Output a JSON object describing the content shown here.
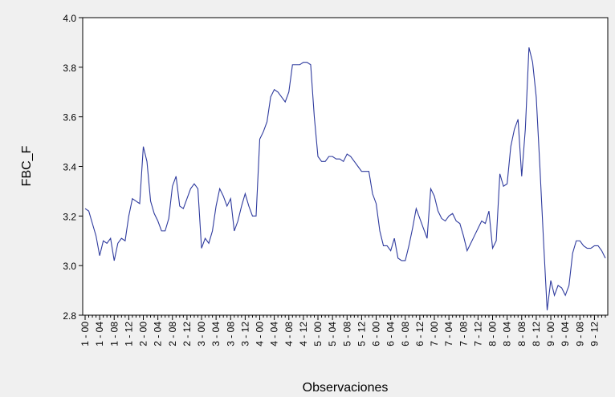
{
  "chart_data": {
    "type": "line",
    "ylabel": "FBC_F",
    "xlabel": "Observaciones",
    "color": "#2f3b9e",
    "ylim": [
      2.8,
      4.0
    ],
    "yticks": [
      2.8,
      {
        "value": 3,
        "label": "3.0"
      },
      3.2,
      3.4,
      3.6,
      3.8,
      {
        "value": 4,
        "label": "4.0"
      }
    ],
    "categories": [
      "1 - 00",
      null,
      null,
      null,
      "1 - 04",
      null,
      null,
      null,
      "1 - 08",
      null,
      null,
      null,
      "1 - 12",
      null,
      null,
      null,
      "2 - 00",
      null,
      null,
      null,
      "2 - 04",
      null,
      null,
      null,
      "2 - 08",
      null,
      null,
      null,
      "2 - 12",
      null,
      null,
      null,
      "3 - 00",
      null,
      null,
      null,
      "3 - 04",
      null,
      null,
      null,
      "3 - 08",
      null,
      null,
      null,
      "3 - 12",
      null,
      null,
      null,
      "4 - 00",
      null,
      null,
      null,
      "4 - 04",
      null,
      null,
      null,
      "4 - 08",
      null,
      null,
      null,
      "4 - 12",
      null,
      null,
      null,
      "5 - 00",
      null,
      null,
      null,
      "5 - 04",
      null,
      null,
      null,
      "5 - 08",
      null,
      null,
      null,
      "5 - 12",
      null,
      null,
      null,
      "6 - 00",
      null,
      null,
      null,
      "6 - 04",
      null,
      null,
      null,
      "6 - 08",
      null,
      null,
      null,
      "6 - 12",
      null,
      null,
      null,
      "7 - 00",
      null,
      null,
      null,
      "7 - 04",
      null,
      null,
      null,
      "7 - 08",
      null,
      null,
      null,
      "7 - 12",
      null,
      null,
      null,
      "8 - 00",
      null,
      null,
      null,
      "8 - 04",
      null,
      null,
      null,
      "8 - 08",
      null,
      null,
      null,
      "8 - 12",
      null,
      null,
      null,
      "9 - 00",
      null,
      null,
      null,
      "9 - 04",
      null,
      null,
      null,
      "9 - 08",
      null,
      null,
      null,
      "9 - 12",
      null,
      null,
      null
    ],
    "values": [
      3.23,
      3.22,
      3.17,
      3.12,
      3.04,
      3.1,
      3.09,
      3.11,
      3.02,
      3.09,
      3.11,
      3.1,
      3.2,
      3.27,
      3.26,
      3.25,
      3.48,
      3.42,
      3.26,
      3.21,
      3.18,
      3.14,
      3.14,
      3.19,
      3.32,
      3.36,
      3.24,
      3.23,
      3.27,
      3.31,
      3.33,
      3.31,
      3.07,
      3.11,
      3.09,
      3.14,
      3.24,
      3.31,
      3.28,
      3.24,
      3.27,
      3.14,
      3.18,
      3.24,
      3.29,
      3.24,
      3.2,
      3.2,
      3.51,
      3.54,
      3.58,
      3.68,
      3.71,
      3.7,
      3.68,
      3.66,
      3.7,
      3.81,
      3.81,
      3.81,
      3.82,
      3.82,
      3.81,
      3.6,
      3.44,
      3.42,
      3.42,
      3.44,
      3.44,
      3.43,
      3.43,
      3.42,
      3.45,
      3.44,
      3.42,
      3.4,
      3.38,
      3.38,
      3.38,
      3.29,
      3.25,
      3.14,
      3.08,
      3.08,
      3.06,
      3.11,
      3.03,
      3.02,
      3.02,
      3.08,
      3.15,
      3.23,
      3.19,
      3.15,
      3.11,
      3.31,
      3.28,
      3.22,
      3.19,
      3.18,
      3.2,
      3.21,
      3.18,
      3.17,
      3.12,
      3.06,
      3.09,
      3.12,
      3.15,
      3.18,
      3.17,
      3.22,
      3.07,
      3.1,
      3.37,
      3.32,
      3.33,
      3.48,
      3.55,
      3.59,
      3.36,
      3.55,
      3.88,
      3.82,
      3.68,
      3.4,
      3.1,
      2.82,
      2.94,
      2.88,
      2.92,
      2.91,
      2.88,
      2.92,
      3.05,
      3.1,
      3.1,
      3.08,
      3.07,
      3.07,
      3.08,
      3.08,
      3.06,
      3.03
    ]
  }
}
